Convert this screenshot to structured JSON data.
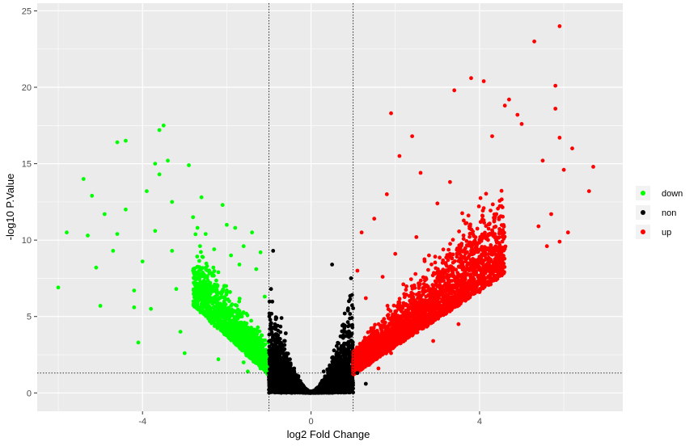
{
  "chart_data": {
    "type": "scatter",
    "title": "",
    "xlabel": "log2 Fold Change",
    "ylabel": "-log10 P.Value",
    "xlim": [
      -6.5,
      7.4
    ],
    "ylim": [
      -1.2,
      25.5
    ],
    "x_ticks": [
      -4,
      0,
      4
    ],
    "y_ticks": [
      0,
      5,
      10,
      15,
      20,
      25
    ],
    "x_tick_labels": [
      "-4",
      "0",
      "4"
    ],
    "y_tick_labels": [
      "0",
      "5",
      "10",
      "15",
      "20",
      "25"
    ],
    "grid": true,
    "panel_background": "#ebebeb",
    "grid_color": "#ffffff",
    "thresholds": {
      "vlines": [
        -1,
        1
      ],
      "hline": 1.3
    },
    "legend_position": "right",
    "series": [
      {
        "name": "down",
        "color": "#00ff00",
        "points": [
          [
            -6.0,
            6.9
          ],
          [
            -5.8,
            10.5
          ],
          [
            -5.4,
            14.0
          ],
          [
            -5.3,
            10.3
          ],
          [
            -5.2,
            12.9
          ],
          [
            -5.1,
            8.2
          ],
          [
            -5.0,
            5.7
          ],
          [
            -4.9,
            11.7
          ],
          [
            -4.7,
            9.3
          ],
          [
            -4.6,
            16.4
          ],
          [
            -4.6,
            10.4
          ],
          [
            -4.4,
            12.0
          ],
          [
            -4.4,
            16.5
          ],
          [
            -4.2,
            6.7
          ],
          [
            -4.2,
            5.6
          ],
          [
            -4.1,
            3.3
          ],
          [
            -4.0,
            8.6
          ],
          [
            -3.9,
            13.2
          ],
          [
            -3.8,
            5.5
          ],
          [
            -3.7,
            10.6
          ],
          [
            -3.7,
            15.0
          ],
          [
            -3.6,
            17.2
          ],
          [
            -3.5,
            17.5
          ],
          [
            -3.6,
            14.3
          ],
          [
            -3.4,
            15.2
          ],
          [
            -3.3,
            12.5
          ],
          [
            -3.3,
            9.3
          ],
          [
            -3.2,
            6.8
          ],
          [
            -3.1,
            4.0
          ],
          [
            -3.0,
            2.6
          ],
          [
            -2.9,
            14.9
          ],
          [
            -2.8,
            11.5
          ],
          [
            -2.8,
            8.0
          ],
          [
            -2.6,
            12.8
          ],
          [
            -2.5,
            10.4
          ],
          [
            -2.4,
            6.5
          ],
          [
            -2.3,
            9.4
          ],
          [
            -2.2,
            7.9
          ],
          [
            -2.1,
            12.3
          ],
          [
            -2.0,
            11.0
          ],
          [
            -1.9,
            9.0
          ],
          [
            -1.8,
            10.8
          ],
          [
            -1.7,
            8.4
          ],
          [
            -1.6,
            9.6
          ],
          [
            -1.4,
            10.5
          ],
          [
            -1.3,
            8.1
          ],
          [
            -1.2,
            9.2
          ],
          [
            -1.1,
            6.3
          ],
          [
            -1.9,
            3.5
          ],
          [
            -1.6,
            2.0
          ],
          [
            -1.5,
            1.4
          ],
          [
            -1.3,
            3.1
          ],
          [
            -1.2,
            1.6
          ],
          [
            -2.2,
            2.2
          ]
        ]
      },
      {
        "name": "non",
        "color": "#000000",
        "points": [
          [
            -0.9,
            9.3
          ],
          [
            -0.95,
            6.8
          ],
          [
            -0.6,
            3.9
          ],
          [
            -0.7,
            4.9
          ],
          [
            -0.8,
            3.0
          ],
          [
            -0.5,
            2.2
          ],
          [
            -0.4,
            1.6
          ],
          [
            -0.3,
            1.1
          ],
          [
            0.1,
            0.0
          ],
          [
            0.3,
            1.4
          ],
          [
            0.5,
            2.3
          ],
          [
            0.7,
            3.7
          ],
          [
            0.8,
            5.2
          ],
          [
            0.9,
            6.0
          ],
          [
            0.95,
            7.5
          ],
          [
            0.5,
            8.4
          ],
          [
            0.85,
            0.7
          ],
          [
            -0.85,
            0.6
          ],
          [
            1.1,
            1.3
          ],
          [
            1.3,
            0.6
          ]
        ]
      },
      {
        "name": "up",
        "color": "#ff0000",
        "points": [
          [
            5.9,
            24.0
          ],
          [
            5.3,
            23.0
          ],
          [
            3.8,
            20.6
          ],
          [
            4.1,
            20.4
          ],
          [
            5.8,
            20.1
          ],
          [
            3.4,
            19.8
          ],
          [
            4.7,
            19.2
          ],
          [
            4.6,
            18.8
          ],
          [
            5.8,
            18.6
          ],
          [
            4.9,
            18.2
          ],
          [
            1.9,
            18.3
          ],
          [
            5.0,
            17.6
          ],
          [
            5.9,
            16.7
          ],
          [
            6.2,
            16.0
          ],
          [
            4.3,
            16.8
          ],
          [
            5.5,
            15.2
          ],
          [
            6.0,
            14.6
          ],
          [
            6.7,
            14.8
          ],
          [
            6.6,
            13.2
          ],
          [
            5.7,
            11.7
          ],
          [
            5.4,
            10.9
          ],
          [
            4.4,
            11.7
          ],
          [
            4.1,
            11.3
          ],
          [
            3.3,
            13.8
          ],
          [
            3.0,
            12.4
          ],
          [
            2.6,
            14.4
          ],
          [
            2.4,
            16.8
          ],
          [
            2.1,
            15.5
          ],
          [
            1.8,
            13.0
          ],
          [
            1.5,
            11.4
          ],
          [
            1.2,
            10.5
          ],
          [
            1.1,
            8.0
          ],
          [
            1.3,
            6.2
          ],
          [
            1.7,
            7.6
          ],
          [
            2.0,
            9.1
          ],
          [
            2.5,
            10.2
          ],
          [
            2.8,
            9.0
          ],
          [
            3.2,
            8.5
          ],
          [
            3.6,
            7.0
          ],
          [
            4.0,
            6.6
          ],
          [
            4.5,
            9.2
          ],
          [
            5.6,
            9.6
          ],
          [
            5.9,
            9.9
          ],
          [
            6.1,
            10.5
          ],
          [
            3.0,
            6.0
          ],
          [
            3.5,
            4.5
          ],
          [
            1.4,
            3.2
          ],
          [
            1.6,
            1.6
          ],
          [
            1.9,
            2.6
          ],
          [
            2.4,
            4.1
          ],
          [
            2.9,
            3.4
          ]
        ]
      }
    ],
    "density_regions": [
      {
        "series": "down",
        "x_range": [
          -2.8,
          -1.0
        ],
        "y_peak": 12.0,
        "count": 1600
      },
      {
        "series": "non",
        "x_range": [
          -1.0,
          1.0
        ],
        "y_peak": 7.0,
        "count": 3200
      },
      {
        "series": "up",
        "x_range": [
          1.0,
          4.6
        ],
        "y_peak": 17.0,
        "count": 2800
      }
    ],
    "legend": [
      {
        "label": "down",
        "color": "#00ff00"
      },
      {
        "label": "non",
        "color": "#000000"
      },
      {
        "label": "up",
        "color": "#ff0000"
      }
    ]
  }
}
